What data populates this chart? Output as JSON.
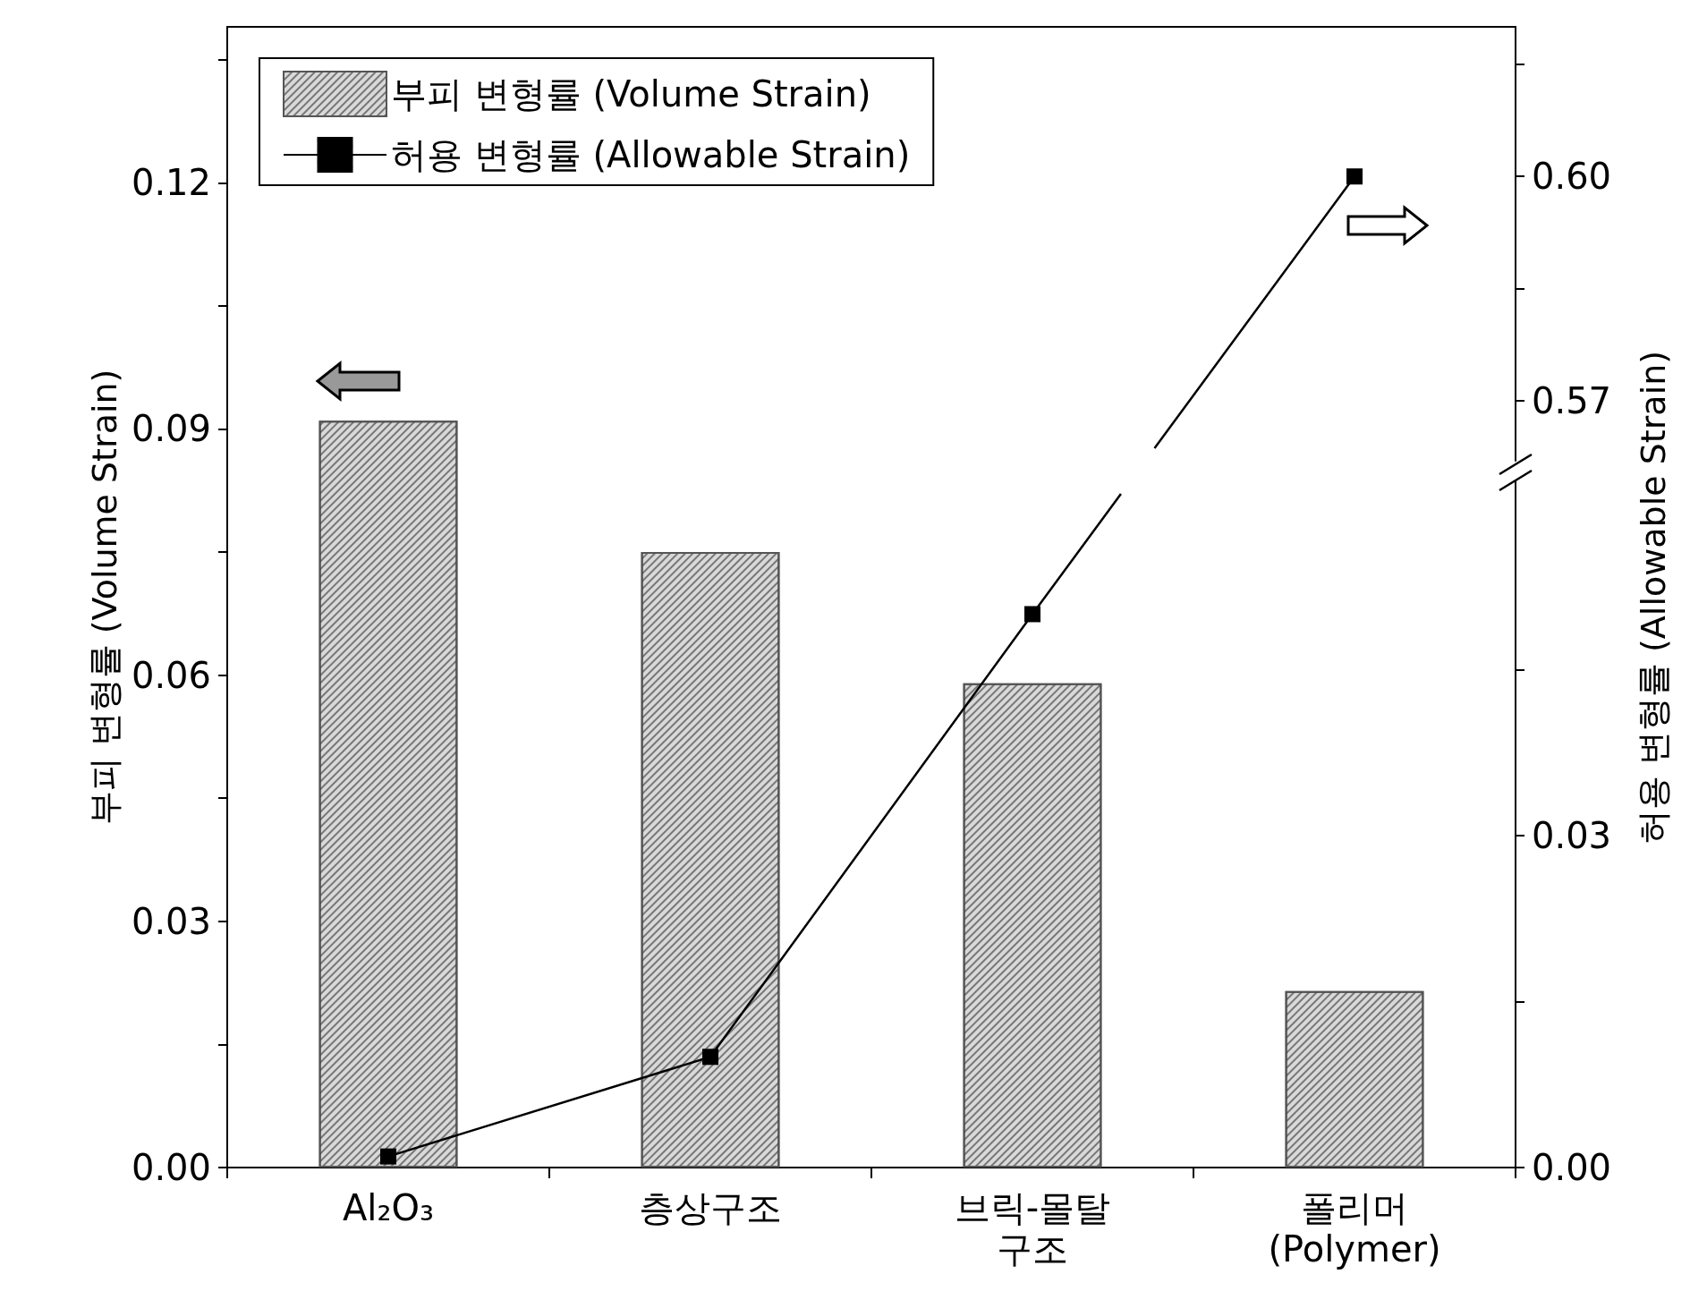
{
  "chart_data": {
    "type": "bar",
    "categories": [
      "Al₂O₃",
      "층상구조",
      "브릭-몰탈\n구조",
      "폴리머\n(Polymer)"
    ],
    "ylabel": "부피 변형률 (Volume Strain)",
    "y2label": "허용 변형률 (Allowable Strain)",
    "series": [
      {
        "name": "부피 변형률 (Volume Strain)",
        "color": "#d9d9d9",
        "values": [
          0.091,
          0.075,
          0.059,
          0.0215
        ]
      },
      {
        "name": "허용 변형률 (Allowable Strain)",
        "type": "line",
        "axis": "y2",
        "color": "#000000",
        "marker": "square",
        "values": [
          0.001,
          0.01,
          0.05,
          null
        ]
      },
      {
        "type": "line",
        "axis": "y3",
        "color": "#000000",
        "marker": "square",
        "values": [
          null,
          null,
          null,
          0.6
        ]
      }
    ],
    "ylim": [
      0,
      0.139
    ],
    "yticks": [
      {
        "value": 0,
        "label": "0.00"
      },
      {
        "value": 0.015,
        "label": null
      },
      {
        "value": 0.03,
        "label": "0.03"
      },
      {
        "value": 0.045,
        "label": null
      },
      {
        "value": 0.06,
        "label": "0.06"
      },
      {
        "value": 0.075,
        "label": null
      },
      {
        "value": 0.09,
        "label": "0.09"
      },
      {
        "value": 0.105,
        "label": null
      },
      {
        "value": 0.12,
        "label": "0.12"
      },
      {
        "value": 0.135,
        "label": null
      }
    ],
    "y2lim": [
      0,
      0.062
    ],
    "y2ticks": [
      {
        "value": 0,
        "label": "0.00"
      },
      {
        "value": 0.015,
        "label": null
      },
      {
        "value": 0.03,
        "label": "0.03"
      },
      {
        "value": 0.045,
        "label": null
      }
    ],
    "y3lim": [
      0.562,
      0.62
    ],
    "y3ticks": [
      {
        "value": 0.57,
        "label": "0.57"
      },
      {
        "value": 0.585,
        "label": null
      },
      {
        "value": 0.6,
        "label": "0.60"
      },
      {
        "value": 0.615,
        "label": null
      }
    ],
    "legend": "top left",
    "grid": false
  }
}
